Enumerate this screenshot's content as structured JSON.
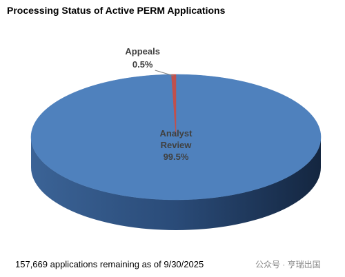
{
  "chart_data": {
    "type": "pie",
    "title": "Processing Status of Active PERM Applications",
    "categories": [
      "Analyst Review",
      "Appeals"
    ],
    "values": [
      99.5,
      0.5
    ],
    "value_labels": [
      "99.5%",
      "0.5%"
    ],
    "colors": [
      "#4f81bd",
      "#c0504d"
    ],
    "note": "157,669 applications remaining as of 9/30/2025",
    "watermark": "公众号 · 亨瑞出国"
  }
}
